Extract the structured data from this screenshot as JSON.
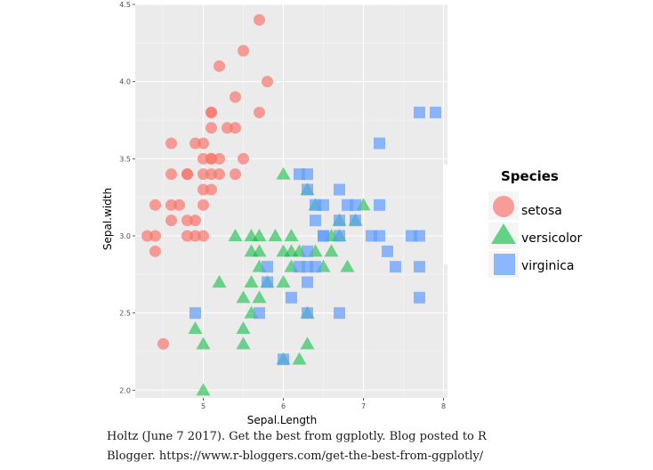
{
  "chart_data": {
    "type": "scatter",
    "xlabel": "Sepal.Length",
    "ylabel": "Sepal.width",
    "xlim": [
      4.15,
      8.05
    ],
    "ylim": [
      1.95,
      4.5
    ],
    "x_ticks": [
      5,
      6,
      7,
      8
    ],
    "x_tick_labels": [
      "5",
      "6",
      "7",
      "8"
    ],
    "y_ticks": [
      2.0,
      2.5,
      3.0,
      3.5,
      4.0,
      4.5
    ],
    "y_tick_labels": [
      "2.0",
      "2.5",
      "3.0",
      "3.5",
      "4.0",
      "4.5"
    ],
    "grid": true,
    "legend": {
      "title": "Species",
      "placement": "right"
    },
    "series": [
      {
        "name": "setosa",
        "marker": "circle",
        "color": "#F8766D",
        "points": [
          [
            5.7,
            4.4
          ],
          [
            5.5,
            4.2
          ],
          [
            5.2,
            4.1
          ],
          [
            5.8,
            4.0
          ],
          [
            5.4,
            3.9
          ],
          [
            5.1,
            3.8
          ],
          [
            5.1,
            3.8
          ],
          [
            5.7,
            3.8
          ],
          [
            5.4,
            3.7
          ],
          [
            5.1,
            3.7
          ],
          [
            5.3,
            3.7
          ],
          [
            4.6,
            3.6
          ],
          [
            4.9,
            3.6
          ],
          [
            5.0,
            3.6
          ],
          [
            5.0,
            3.5
          ],
          [
            5.1,
            3.5
          ],
          [
            5.2,
            3.5
          ],
          [
            5.5,
            3.5
          ],
          [
            5.1,
            3.5
          ],
          [
            4.6,
            3.4
          ],
          [
            4.8,
            3.4
          ],
          [
            5.0,
            3.4
          ],
          [
            5.1,
            3.4
          ],
          [
            5.2,
            3.4
          ],
          [
            5.4,
            3.4
          ],
          [
            4.8,
            3.4
          ],
          [
            5.0,
            3.3
          ],
          [
            5.1,
            3.3
          ],
          [
            5.0,
            3.2
          ],
          [
            4.4,
            3.2
          ],
          [
            4.6,
            3.2
          ],
          [
            4.7,
            3.2
          ],
          [
            4.9,
            3.1
          ],
          [
            4.8,
            3.1
          ],
          [
            4.6,
            3.1
          ],
          [
            4.3,
            3.0
          ],
          [
            4.4,
            3.0
          ],
          [
            4.8,
            3.0
          ],
          [
            5.0,
            3.0
          ],
          [
            4.9,
            3.0
          ],
          [
            4.4,
            2.9
          ],
          [
            4.5,
            2.3
          ]
        ]
      },
      {
        "name": "versicolor",
        "marker": "triangle",
        "color": "#00BA38",
        "points": [
          [
            6.0,
            3.4
          ],
          [
            6.3,
            3.3
          ],
          [
            6.7,
            3.1
          ],
          [
            6.9,
            3.1
          ],
          [
            7.0,
            3.2
          ],
          [
            6.4,
            3.2
          ],
          [
            5.4,
            3.0
          ],
          [
            5.6,
            3.0
          ],
          [
            5.9,
            3.0
          ],
          [
            6.1,
            3.0
          ],
          [
            6.7,
            3.0
          ],
          [
            6.6,
            3.0
          ],
          [
            5.7,
            3.0
          ],
          [
            5.6,
            2.9
          ],
          [
            6.0,
            2.9
          ],
          [
            6.1,
            2.9
          ],
          [
            6.2,
            2.9
          ],
          [
            6.4,
            2.9
          ],
          [
            6.6,
            2.9
          ],
          [
            5.7,
            2.9
          ],
          [
            5.7,
            2.8
          ],
          [
            6.1,
            2.8
          ],
          [
            6.5,
            2.8
          ],
          [
            6.8,
            2.8
          ],
          [
            5.8,
            2.7
          ],
          [
            6.0,
            2.7
          ],
          [
            5.6,
            2.7
          ],
          [
            5.2,
            2.7
          ],
          [
            5.5,
            2.6
          ],
          [
            5.7,
            2.6
          ],
          [
            5.6,
            2.5
          ],
          [
            6.3,
            2.5
          ],
          [
            5.5,
            2.4
          ],
          [
            4.9,
            2.4
          ],
          [
            5.0,
            2.3
          ],
          [
            5.5,
            2.3
          ],
          [
            6.3,
            2.3
          ],
          [
            6.0,
            2.2
          ],
          [
            6.2,
            2.2
          ],
          [
            5.0,
            2.0
          ]
        ]
      },
      {
        "name": "virginica",
        "marker": "square",
        "color": "#619CFF",
        "points": [
          [
            7.7,
            3.8
          ],
          [
            7.9,
            3.8
          ],
          [
            7.2,
            3.6
          ],
          [
            6.2,
            3.4
          ],
          [
            6.3,
            3.4
          ],
          [
            6.3,
            3.3
          ],
          [
            6.7,
            3.3
          ],
          [
            6.4,
            3.2
          ],
          [
            6.9,
            3.2
          ],
          [
            6.5,
            3.2
          ],
          [
            7.2,
            3.2
          ],
          [
            6.8,
            3.2
          ],
          [
            6.7,
            3.1
          ],
          [
            6.9,
            3.1
          ],
          [
            6.4,
            3.1
          ],
          [
            6.5,
            3.0
          ],
          [
            7.1,
            3.0
          ],
          [
            7.2,
            3.0
          ],
          [
            7.6,
            3.0
          ],
          [
            7.7,
            3.0
          ],
          [
            6.7,
            3.0
          ],
          [
            6.5,
            3.0
          ],
          [
            7.3,
            2.9
          ],
          [
            6.3,
            2.9
          ],
          [
            7.4,
            2.8
          ],
          [
            6.3,
            2.8
          ],
          [
            7.7,
            2.8
          ],
          [
            5.8,
            2.8
          ],
          [
            6.4,
            2.8
          ],
          [
            6.2,
            2.8
          ],
          [
            5.8,
            2.7
          ],
          [
            6.3,
            2.7
          ],
          [
            7.7,
            2.6
          ],
          [
            6.1,
            2.6
          ],
          [
            6.7,
            2.5
          ],
          [
            5.7,
            2.5
          ],
          [
            6.3,
            2.5
          ],
          [
            4.9,
            2.5
          ],
          [
            6.0,
            2.2
          ]
        ]
      }
    ]
  },
  "caption": {
    "line1": "Holtz (June 7 2017). Get the best from ggplotly. Blog posted to R",
    "line2": "Blogger. https://www.r-bloggers.com/get-the-best-from-ggplotly/"
  }
}
